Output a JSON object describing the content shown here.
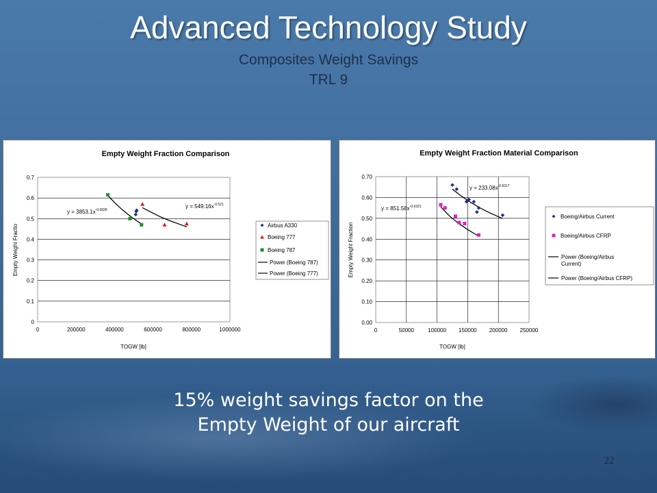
{
  "slide": {
    "title": "Advanced Technology Study",
    "subtitle_1": "Composites Weight Savings",
    "subtitle_2": "TRL 9",
    "caption_1": "15% weight savings factor on the",
    "caption_2": "Empty Weight of our aircraft",
    "page_number": "22"
  },
  "chart_data": [
    {
      "type": "scatter",
      "title": "Empty Weight Fraction Comparison",
      "xlabel": "TOGW [lb]",
      "ylabel": "Empty Weight Fractio",
      "xlim": [
        0,
        1000000
      ],
      "ylim": [
        0,
        0.7
      ],
      "x_ticks": [
        "0",
        "200000",
        "400000",
        "600000",
        "800000",
        "1000000"
      ],
      "y_ticks": [
        "0",
        "0.1",
        "0.2",
        "0.3",
        "0.4",
        "0.5",
        "0.6",
        "0.7"
      ],
      "grid": "horizontal",
      "legend": "right",
      "series": [
        {
          "name": "Airbus A330",
          "marker": "diamond",
          "color": "#1f2f8f",
          "x": [
            510000,
            515000,
            513000
          ],
          "y": [
            0.52,
            0.54,
            0.535
          ]
        },
        {
          "name": "Boeing 777",
          "marker": "triangle",
          "color": "#e0191f",
          "x": [
            545000,
            660000,
            775000
          ],
          "y": [
            0.57,
            0.47,
            0.475
          ]
        },
        {
          "name": "Boeing 787",
          "marker": "square",
          "color": "#1f8f2f",
          "x": [
            365000,
            480000,
            540000
          ],
          "y": [
            0.615,
            0.5,
            0.47
          ]
        }
      ],
      "trendlines": [
        {
          "name": "Power (Boeing 787)",
          "equation_base": "y = 3853.1x",
          "equation_exp": "-0.6839",
          "x": [
            365000,
            400000,
            440000,
            480000,
            510000,
            540000
          ],
          "y": [
            0.612,
            0.578,
            0.543,
            0.513,
            0.493,
            0.474
          ]
        },
        {
          "name": "Power (Boeing 777)",
          "equation_base": "y = 549.16x",
          "equation_exp": "-0.521",
          "x": [
            545000,
            590000,
            640000,
            690000,
            740000,
            775000
          ],
          "y": [
            0.553,
            0.531,
            0.508,
            0.489,
            0.472,
            0.46
          ]
        }
      ]
    },
    {
      "type": "scatter",
      "title": "Empty Weight Fraction Material Comparison",
      "xlabel": "TOGW [lb]",
      "ylabel": "Empty Weight Fraction",
      "xlim": [
        0,
        250000
      ],
      "ylim": [
        0,
        0.7
      ],
      "x_ticks": [
        "0",
        "50000",
        "100000",
        "150000",
        "200000",
        "250000"
      ],
      "y_ticks": [
        "0.00",
        "0.10",
        "0.20",
        "0.30",
        "0.40",
        "0.50",
        "0.60",
        "0.70"
      ],
      "grid": "both",
      "legend": "right",
      "series": [
        {
          "name": "Boeing/Airbus Current",
          "marker": "diamond",
          "color": "#1f2f8f",
          "x": [
            125000,
            132000,
            148000,
            152000,
            160000,
            165000,
            168000,
            207000
          ],
          "y": [
            0.66,
            0.64,
            0.58,
            0.59,
            0.58,
            0.53,
            0.55,
            0.515
          ]
        },
        {
          "name": "Boeing/Airbus CFRP",
          "marker": "square",
          "color": "#e020c0",
          "x": [
            106000,
            113000,
            130000,
            136000,
            145000,
            168000
          ],
          "y": [
            0.565,
            0.55,
            0.51,
            0.48,
            0.475,
            0.42
          ]
        }
      ],
      "trendlines": [
        {
          "name": "Power (Boeing/Airbus Current)",
          "equation_base": "y = 233.08x",
          "equation_exp": "-0.5017",
          "x": [
            125000,
            140000,
            155000,
            170000,
            185000,
            207000
          ],
          "y": [
            0.64,
            0.606,
            0.576,
            0.55,
            0.527,
            0.499
          ]
        },
        {
          "name": "Power (Boeing/Airbus CFRP)",
          "equation_base": "y = 851.58x",
          "equation_exp": "-0.6321",
          "x": [
            106000,
            120000,
            135000,
            150000,
            168000
          ],
          "y": [
            0.555,
            0.512,
            0.476,
            0.446,
            0.414
          ]
        }
      ]
    }
  ]
}
